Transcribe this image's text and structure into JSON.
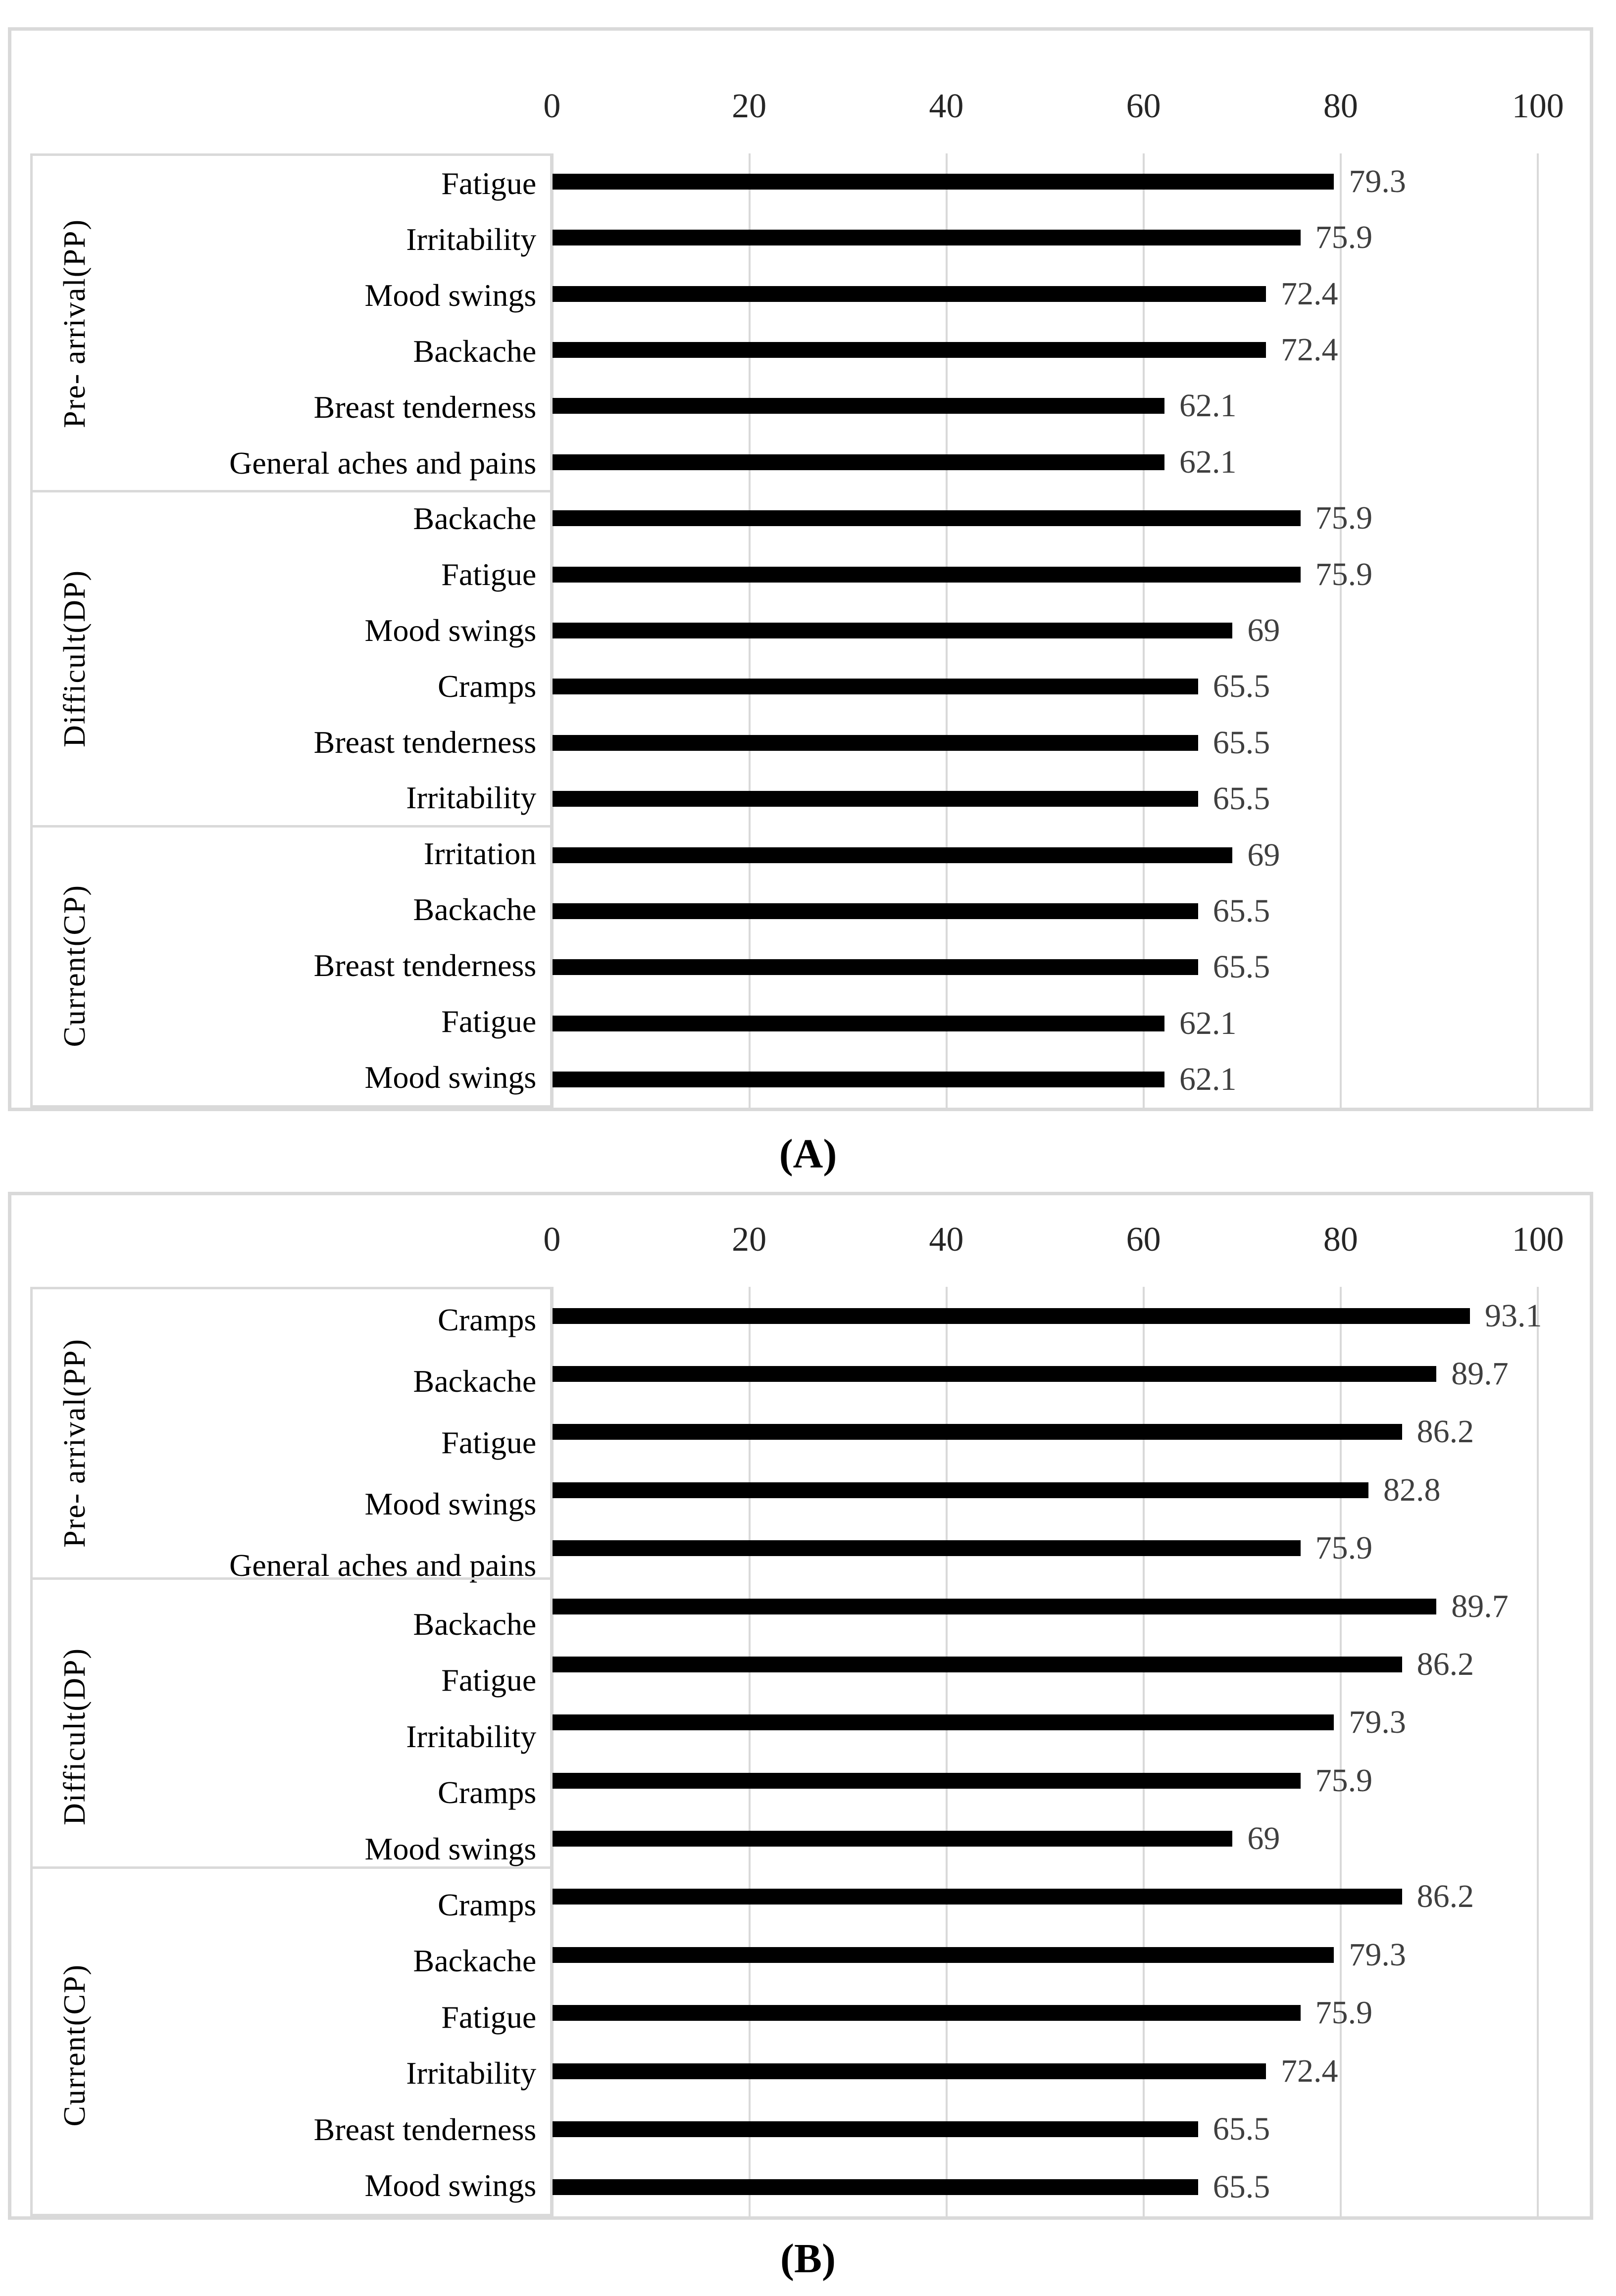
{
  "figure": {
    "caption_a": "(A)",
    "caption_b": "(B)"
  },
  "colors": {
    "bar": "#000000",
    "gridline": "#d9d9d9",
    "box_border": "#d9d9d9",
    "value_label": "#3f3f3f",
    "axis_label": "#262626",
    "background": "#ffffff"
  },
  "chart_data": [
    {
      "type": "bar",
      "orientation": "horizontal",
      "caption": "(A)",
      "title": "",
      "xlabel": "",
      "ylabel": "",
      "xlim": [
        0,
        100
      ],
      "x_ticks": [
        0,
        20,
        40,
        60,
        80,
        100
      ],
      "tick_position": "top",
      "grid": true,
      "bar_color": "#000000",
      "groups": [
        {
          "label": "Pre- arrival(PP)",
          "items": [
            {
              "category": "Fatigue",
              "value": 79.3
            },
            {
              "category": "Irritability",
              "value": 75.9
            },
            {
              "category": "Mood swings",
              "value": 72.4
            },
            {
              "category": "Backache",
              "value": 72.4
            },
            {
              "category": "Breast tenderness",
              "value": 62.1
            },
            {
              "category": "General aches and pains",
              "value": 62.1
            }
          ]
        },
        {
          "label": "Difficult(DP)",
          "items": [
            {
              "category": "Backache",
              "value": 75.9
            },
            {
              "category": "Fatigue",
              "value": 75.9
            },
            {
              "category": "Mood swings",
              "value": 69
            },
            {
              "category": "Cramps",
              "value": 65.5
            },
            {
              "category": "Breast tenderness",
              "value": 65.5
            },
            {
              "category": "Irritability",
              "value": 65.5
            }
          ]
        },
        {
          "label": "Current(CP)",
          "items": [
            {
              "category": "Irritation",
              "value": 69
            },
            {
              "category": "Backache",
              "value": 65.5
            },
            {
              "category": "Breast tenderness",
              "value": 65.5
            },
            {
              "category": "Fatigue",
              "value": 62.1
            },
            {
              "category": "Mood swings",
              "value": 62.1
            }
          ]
        }
      ]
    },
    {
      "type": "bar",
      "orientation": "horizontal",
      "caption": "(B)",
      "title": "",
      "xlabel": "",
      "ylabel": "",
      "xlim": [
        0,
        100
      ],
      "x_ticks": [
        0,
        20,
        40,
        60,
        80,
        100
      ],
      "tick_position": "top",
      "grid": true,
      "bar_color": "#000000",
      "groups": [
        {
          "label": "Pre- arrival(PP)",
          "items": [
            {
              "category": "Cramps",
              "value": 93.1
            },
            {
              "category": "Backache",
              "value": 89.7
            },
            {
              "category": "Fatigue",
              "value": 86.2
            },
            {
              "category": "Mood swings",
              "value": 82.8
            },
            {
              "category": "General aches and pains",
              "value": 75.9
            }
          ]
        },
        {
          "label": "Difficult(DP)",
          "items": [
            {
              "category": "Backache",
              "value": 89.7
            },
            {
              "category": "Fatigue",
              "value": 86.2
            },
            {
              "category": "Irritability",
              "value": 79.3
            },
            {
              "category": "Cramps",
              "value": 75.9
            },
            {
              "category": "Mood swings",
              "value": 69
            }
          ]
        },
        {
          "label": "Current(CP)",
          "items": [
            {
              "category": "Cramps",
              "value": 86.2
            },
            {
              "category": "Backache",
              "value": 79.3
            },
            {
              "category": "Fatigue",
              "value": 75.9
            },
            {
              "category": "Irritability",
              "value": 72.4
            },
            {
              "category": "Breast tenderness",
              "value": 65.5
            },
            {
              "category": "Mood swings",
              "value": 65.5
            }
          ]
        }
      ]
    }
  ]
}
